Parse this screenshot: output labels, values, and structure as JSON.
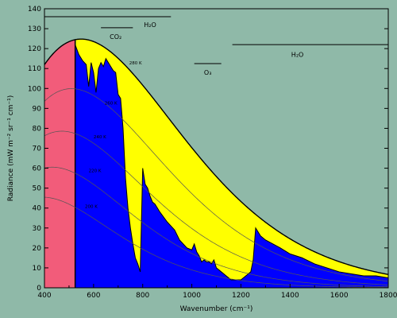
{
  "chart_data": {
    "type": "line",
    "title": "",
    "xlabel": "Wavenumber (cm⁻¹)",
    "ylabel": "Radiance (mW m⁻² sr⁻¹ cm⁻¹)",
    "xlim": [
      400,
      1800
    ],
    "ylim": [
      0,
      140
    ],
    "xticks": [
      "400",
      "600",
      "800",
      "1000",
      "1200",
      "1400",
      "1600",
      "1800"
    ],
    "yticks": [
      "0",
      "10",
      "20",
      "30",
      "40",
      "50",
      "60",
      "70",
      "80",
      "90",
      "100",
      "110",
      "120",
      "130",
      "140"
    ],
    "grid": false,
    "reference_curves": [
      {
        "name": "280 K",
        "temperature": 280
      },
      {
        "name": "260 K",
        "temperature": 260
      },
      {
        "name": "240 K",
        "temperature": 240
      },
      {
        "name": "220 K",
        "temperature": 220
      },
      {
        "name": "200 K",
        "temperature": 200
      }
    ],
    "highlight_band": {
      "x_start": 400,
      "x_end": 525,
      "color": "#f25c7a"
    },
    "planck_fill_color": "#ffff00",
    "observed_fill_color": "#0000ff",
    "observed_spectrum": {
      "x": [
        525,
        540,
        555,
        570,
        580,
        590,
        600,
        610,
        620,
        630,
        640,
        650,
        660,
        670,
        680,
        690,
        700,
        710,
        720,
        730,
        740,
        750,
        760,
        770,
        780,
        790,
        800,
        810,
        820,
        830,
        840,
        850,
        870,
        900,
        930,
        950,
        980,
        1000,
        1010,
        1020,
        1030,
        1040,
        1050,
        1060,
        1070,
        1080,
        1090,
        1100,
        1120,
        1140,
        1160,
        1180,
        1200,
        1220,
        1240,
        1250,
        1260,
        1270,
        1280,
        1300,
        1330,
        1360,
        1400,
        1450,
        1500,
        1550,
        1600,
        1650,
        1700,
        1750,
        1800
      ],
      "y": [
        122,
        117,
        114,
        112,
        101,
        113,
        108,
        98,
        110,
        113,
        111,
        115,
        113,
        111,
        109,
        108,
        97,
        95,
        80,
        55,
        40,
        30,
        22,
        15,
        12,
        8,
        60,
        52,
        50,
        46,
        43,
        42,
        38,
        33,
        29,
        24,
        20,
        19,
        22,
        18,
        16,
        13,
        14,
        13,
        13,
        12,
        14,
        10,
        8,
        6,
        4,
        4,
        4,
        6,
        8,
        14,
        30,
        28,
        26,
        24,
        22,
        20,
        17,
        15,
        12,
        10,
        8,
        7,
        6,
        6,
        5
      ]
    },
    "annotations": [
      {
        "text": "H₂O",
        "line_x": [
          400,
          915
        ],
        "line_y": 136,
        "label_x": 830,
        "label_y": 132
      },
      {
        "text": "CO₂",
        "line_x": [
          630,
          760
        ],
        "line_y": 130.5,
        "label_x": 690,
        "label_y": 126
      },
      {
        "text": "H₂O",
        "line_x": [
          1165,
          1800
        ],
        "line_y": 122,
        "label_x": 1430,
        "label_y": 117
      },
      {
        "text": "O₃",
        "line_x": [
          1010,
          1120
        ],
        "line_y": 112.5,
        "label_x": 1065,
        "label_y": 108
      }
    ],
    "curve_label_positions": [
      {
        "name": "280 K",
        "x": 745,
        "y": 112
      },
      {
        "name": "260 K",
        "x": 645,
        "y": 92
      },
      {
        "name": "240 K",
        "x": 600,
        "y": 75
      },
      {
        "name": "220 K",
        "x": 580,
        "y": 58
      },
      {
        "name": "200 K",
        "x": 565,
        "y": 40
      }
    ]
  }
}
